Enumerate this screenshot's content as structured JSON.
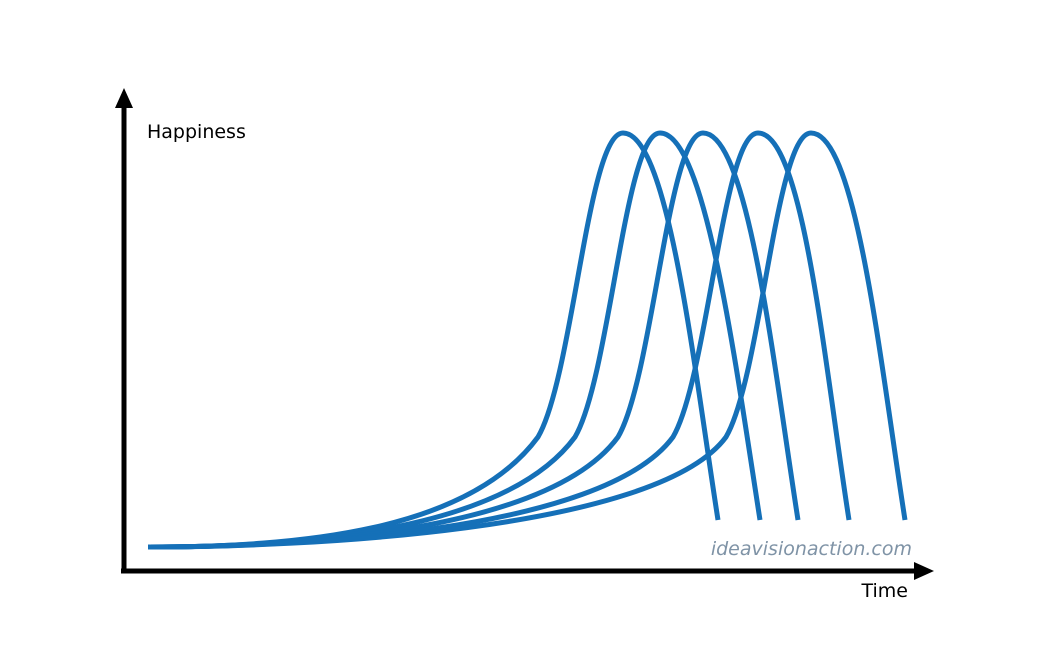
{
  "diagram": {
    "y_axis_label": "Happiness",
    "x_axis_label": "Time",
    "watermark": "ideavisionaction.com",
    "curve_color": "#1570b8",
    "axis_color": "#000000",
    "watermark_color": "#7f93a6",
    "curve_count": 5
  }
}
